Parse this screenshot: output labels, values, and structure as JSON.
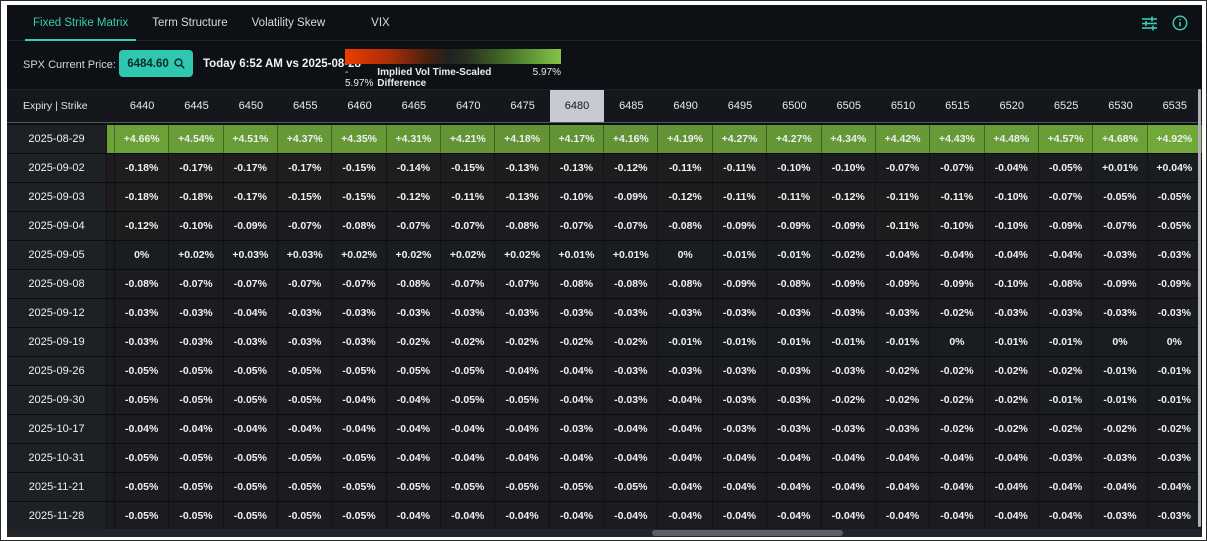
{
  "tabs": [
    {
      "label": "Fixed Strike Matrix",
      "active": true
    },
    {
      "label": "Term Structure",
      "active": false
    },
    {
      "label": "Volatility Skew",
      "active": false
    },
    {
      "label": "VIX",
      "active": false
    }
  ],
  "toolbar": {
    "price_label": "SPX Current Price:",
    "price_value": "6484.60",
    "comparison": "Today 6:52 AM vs 2025-08-28",
    "legend": {
      "min": "- 5.97%",
      "title": "Implied Vol Time-Scaled Difference",
      "max": "5.97%",
      "scale_abs": 5.97
    }
  },
  "colors": {
    "accent_teal": "#3fc9b5",
    "positive_green": "#86c34b",
    "negative_red": "#ef3b00",
    "cell_base": "#191c20",
    "highlighted_header_bg": "#c7cad0"
  },
  "table": {
    "corner_label": "Expiry | Strike",
    "highlighted_strike": "6480",
    "strikes": [
      "6440",
      "6445",
      "6450",
      "6455",
      "6460",
      "6465",
      "6470",
      "6475",
      "6480",
      "6485",
      "6490",
      "6495",
      "6500",
      "6505",
      "6510",
      "6515",
      "6520",
      "6525",
      "6530",
      "6535"
    ],
    "rows": [
      {
        "expiry": "2025-08-29",
        "values": [
          "+4.66%",
          "+4.54%",
          "+4.51%",
          "+4.37%",
          "+4.35%",
          "+4.31%",
          "+4.21%",
          "+4.18%",
          "+4.17%",
          "+4.16%",
          "+4.19%",
          "+4.27%",
          "+4.27%",
          "+4.34%",
          "+4.42%",
          "+4.43%",
          "+4.48%",
          "+4.57%",
          "+4.68%",
          "+4.92%"
        ]
      },
      {
        "expiry": "2025-09-02",
        "values": [
          "-0.18%",
          "-0.17%",
          "-0.17%",
          "-0.17%",
          "-0.15%",
          "-0.14%",
          "-0.15%",
          "-0.13%",
          "-0.13%",
          "-0.12%",
          "-0.11%",
          "-0.11%",
          "-0.10%",
          "-0.10%",
          "-0.07%",
          "-0.07%",
          "-0.04%",
          "-0.05%",
          "+0.01%",
          "+0.04%"
        ]
      },
      {
        "expiry": "2025-09-03",
        "values": [
          "-0.18%",
          "-0.18%",
          "-0.17%",
          "-0.15%",
          "-0.15%",
          "-0.12%",
          "-0.11%",
          "-0.13%",
          "-0.10%",
          "-0.09%",
          "-0.12%",
          "-0.11%",
          "-0.11%",
          "-0.12%",
          "-0.11%",
          "-0.11%",
          "-0.10%",
          "-0.07%",
          "-0.05%",
          "-0.05%"
        ]
      },
      {
        "expiry": "2025-09-04",
        "values": [
          "-0.12%",
          "-0.10%",
          "-0.09%",
          "-0.07%",
          "-0.08%",
          "-0.07%",
          "-0.07%",
          "-0.08%",
          "-0.07%",
          "-0.07%",
          "-0.08%",
          "-0.09%",
          "-0.09%",
          "-0.09%",
          "-0.11%",
          "-0.10%",
          "-0.10%",
          "-0.09%",
          "-0.07%",
          "-0.05%"
        ]
      },
      {
        "expiry": "2025-09-05",
        "values": [
          "0%",
          "+0.02%",
          "+0.03%",
          "+0.03%",
          "+0.02%",
          "+0.02%",
          "+0.02%",
          "+0.02%",
          "+0.01%",
          "+0.01%",
          "0%",
          "-0.01%",
          "-0.01%",
          "-0.02%",
          "-0.04%",
          "-0.04%",
          "-0.04%",
          "-0.04%",
          "-0.03%",
          "-0.03%"
        ]
      },
      {
        "expiry": "2025-09-08",
        "values": [
          "-0.08%",
          "-0.07%",
          "-0.07%",
          "-0.07%",
          "-0.07%",
          "-0.08%",
          "-0.07%",
          "-0.07%",
          "-0.08%",
          "-0.08%",
          "-0.08%",
          "-0.09%",
          "-0.08%",
          "-0.09%",
          "-0.09%",
          "-0.09%",
          "-0.10%",
          "-0.08%",
          "-0.09%",
          "-0.09%"
        ]
      },
      {
        "expiry": "2025-09-12",
        "values": [
          "-0.03%",
          "-0.03%",
          "-0.04%",
          "-0.03%",
          "-0.03%",
          "-0.03%",
          "-0.03%",
          "-0.03%",
          "-0.03%",
          "-0.03%",
          "-0.03%",
          "-0.03%",
          "-0.03%",
          "-0.03%",
          "-0.03%",
          "-0.02%",
          "-0.03%",
          "-0.03%",
          "-0.03%",
          "-0.03%"
        ]
      },
      {
        "expiry": "2025-09-19",
        "values": [
          "-0.03%",
          "-0.03%",
          "-0.03%",
          "-0.03%",
          "-0.03%",
          "-0.02%",
          "-0.02%",
          "-0.02%",
          "-0.02%",
          "-0.02%",
          "-0.01%",
          "-0.01%",
          "-0.01%",
          "-0.01%",
          "-0.01%",
          "0%",
          "-0.01%",
          "-0.01%",
          "0%",
          "0%"
        ]
      },
      {
        "expiry": "2025-09-26",
        "values": [
          "-0.05%",
          "-0.05%",
          "-0.05%",
          "-0.05%",
          "-0.05%",
          "-0.05%",
          "-0.05%",
          "-0.04%",
          "-0.04%",
          "-0.03%",
          "-0.03%",
          "-0.03%",
          "-0.03%",
          "-0.03%",
          "-0.02%",
          "-0.02%",
          "-0.02%",
          "-0.02%",
          "-0.01%",
          "-0.01%"
        ]
      },
      {
        "expiry": "2025-09-30",
        "values": [
          "-0.05%",
          "-0.05%",
          "-0.05%",
          "-0.05%",
          "-0.04%",
          "-0.04%",
          "-0.05%",
          "-0.05%",
          "-0.04%",
          "-0.03%",
          "-0.04%",
          "-0.03%",
          "-0.03%",
          "-0.02%",
          "-0.02%",
          "-0.02%",
          "-0.02%",
          "-0.01%",
          "-0.01%",
          "-0.01%"
        ]
      },
      {
        "expiry": "2025-10-17",
        "values": [
          "-0.04%",
          "-0.04%",
          "-0.04%",
          "-0.04%",
          "-0.04%",
          "-0.04%",
          "-0.04%",
          "-0.04%",
          "-0.03%",
          "-0.04%",
          "-0.04%",
          "-0.03%",
          "-0.03%",
          "-0.03%",
          "-0.03%",
          "-0.02%",
          "-0.02%",
          "-0.02%",
          "-0.02%",
          "-0.02%"
        ]
      },
      {
        "expiry": "2025-10-31",
        "values": [
          "-0.05%",
          "-0.05%",
          "-0.05%",
          "-0.05%",
          "-0.05%",
          "-0.04%",
          "-0.04%",
          "-0.04%",
          "-0.04%",
          "-0.04%",
          "-0.04%",
          "-0.04%",
          "-0.04%",
          "-0.04%",
          "-0.04%",
          "-0.04%",
          "-0.04%",
          "-0.03%",
          "-0.03%",
          "-0.03%"
        ]
      },
      {
        "expiry": "2025-11-21",
        "values": [
          "-0.05%",
          "-0.05%",
          "-0.05%",
          "-0.05%",
          "-0.05%",
          "-0.05%",
          "-0.05%",
          "-0.05%",
          "-0.05%",
          "-0.05%",
          "-0.04%",
          "-0.04%",
          "-0.04%",
          "-0.04%",
          "-0.04%",
          "-0.04%",
          "-0.04%",
          "-0.04%",
          "-0.04%",
          "-0.04%"
        ]
      },
      {
        "expiry": "2025-11-28",
        "values": [
          "-0.05%",
          "-0.05%",
          "-0.05%",
          "-0.05%",
          "-0.05%",
          "-0.04%",
          "-0.04%",
          "-0.04%",
          "-0.04%",
          "-0.04%",
          "-0.04%",
          "-0.04%",
          "-0.04%",
          "-0.04%",
          "-0.04%",
          "-0.04%",
          "-0.04%",
          "-0.04%",
          "-0.03%",
          "-0.03%"
        ]
      }
    ]
  }
}
